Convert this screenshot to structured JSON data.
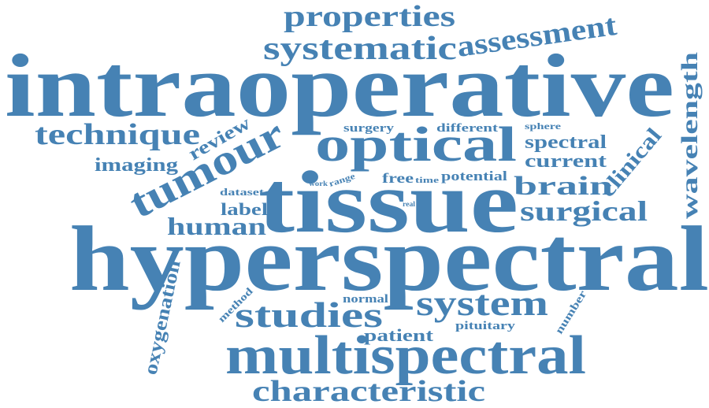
{
  "color": "#4682b4",
  "words": {
    "intraoperative": "intraoperative",
    "hyperspectral": "hyperspectral",
    "tissue": "tissue",
    "multispectral": "multispectral",
    "optical": "optical",
    "tumour": "tumour",
    "properties": "properties",
    "systematic": "systematic",
    "assessment": "assessment",
    "technique": "technique",
    "review": "review",
    "imaging": "imaging",
    "surgery": "surgery",
    "different": "different",
    "sphere": "sphere",
    "spectral": "spectral",
    "current": "current",
    "clinical": "clinical",
    "wavelength": "wavelength",
    "brain": "brain",
    "surgical": "surgical",
    "free": "free",
    "time": "time",
    "potential": "potential",
    "work": "work",
    "range": "range",
    "dataset": "dataset",
    "label": "label",
    "human": "human",
    "real": "real",
    "studies": "studies",
    "system": "system",
    "normal": "normal",
    "patient": "patient",
    "pituitary": "pituitary",
    "number": "number",
    "method": "method",
    "oxygenation": "oxygenation",
    "characteristic": "characteristic"
  }
}
